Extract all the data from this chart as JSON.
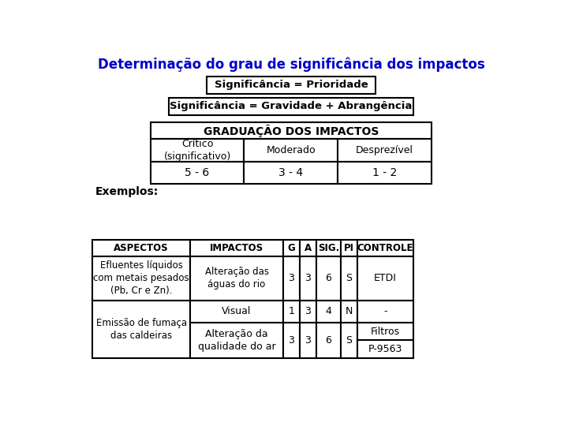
{
  "title": "Determinação do grau de significância dos impactos",
  "title_color": "#0000CC",
  "title_fontsize": 12,
  "box1_text": "Significância = Prioridade",
  "box2_text": "Significância = Gravidade + Abrangência",
  "grad_header": "GRADUAÇÃO DOS IMPACTOS",
  "grad_cols": [
    "Crítico\n(significativo)",
    "Moderado",
    "Desprezível"
  ],
  "grad_vals": [
    "5 - 6",
    "3 - 4",
    "1 - 2"
  ],
  "exemplos_label": "Exemplos:",
  "ex_headers": [
    "ASPECTOS",
    "IMPACTOS",
    "G",
    "A",
    "SIG.",
    "PI",
    "CONTROLE"
  ],
  "ex_row1_aspect": "Efluentes líquidos\ncom metais pesados\n(Pb, Cr e Zn).",
  "ex_row1_impact": "Alteração das\náguas do rio",
  "ex_row1_g": "3",
  "ex_row1_a": "3",
  "ex_row1_sig": "6",
  "ex_row1_pi": "S",
  "ex_row1_ctrl": "ETDI",
  "ex_row2_aspect": "Emissão de fumaça\ndas caldeiras",
  "ex_row2a_impact": "Visual",
  "ex_row2a_g": "1",
  "ex_row2a_a": "3",
  "ex_row2a_sig": "4",
  "ex_row2a_pi": "N",
  "ex_row2a_ctrl": "-",
  "ex_row2b_impact": "Alteração da\nqualidade do ar",
  "ex_row2b_g": "3",
  "ex_row2b_a": "3",
  "ex_row2b_sig": "6",
  "ex_row2b_pi": "S",
  "ex_row2b_ctrl1": "Filtros",
  "ex_row2b_ctrl2": "P-9563",
  "bg_color": "#ffffff"
}
